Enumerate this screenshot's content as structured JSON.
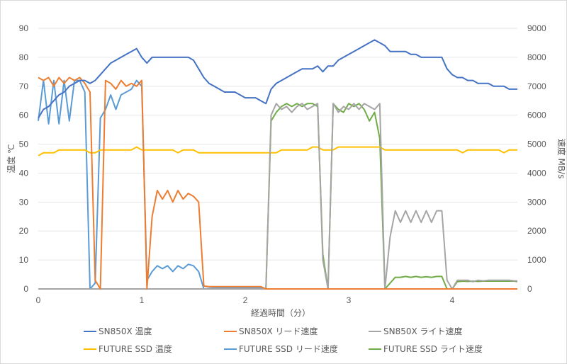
{
  "chart_data": {
    "type": "line",
    "title": "",
    "xlabel": "経過時間（分）",
    "ylabel_left": "温度 ℃",
    "ylabel_right": "速度 MB/s",
    "xlim": [
      0,
      4.65
    ],
    "ylim_left": [
      0,
      90
    ],
    "ylim_right": [
      0,
      9000
    ],
    "x_ticks": [
      "0",
      "1",
      "2",
      "3",
      "4"
    ],
    "y_ticks_left": [
      "0",
      "10",
      "20",
      "30",
      "40",
      "50",
      "60",
      "70",
      "80",
      "90"
    ],
    "y_ticks_right": [
      "0",
      "1000",
      "2000",
      "3000",
      "4000",
      "5000",
      "6000",
      "7000",
      "8000",
      "9000"
    ],
    "grid": true,
    "legend_position": "bottom",
    "x_step": 0.05,
    "series": [
      {
        "name": "SN850X 温度",
        "axis": "left",
        "color": "#4472C4",
        "values": [
          59,
          62,
          63,
          65,
          67,
          68,
          70,
          71,
          72,
          72,
          71,
          72,
          74,
          76,
          78,
          79,
          80,
          81,
          82,
          83,
          80,
          78,
          80,
          80,
          80,
          80,
          80,
          80,
          80,
          80,
          79,
          76,
          73,
          71,
          70,
          69,
          68,
          68,
          68,
          67,
          66,
          66,
          66,
          65,
          64,
          69,
          71,
          72,
          73,
          74,
          75,
          76,
          76,
          76,
          77,
          75,
          77,
          77,
          79,
          80,
          81,
          82,
          83,
          84,
          85,
          86,
          85,
          84,
          82,
          82,
          82,
          82,
          81,
          81,
          80,
          80,
          80,
          80,
          80,
          76,
          74,
          73,
          73,
          72,
          72,
          71,
          71,
          71,
          70,
          70,
          70,
          69,
          69,
          69
        ]
      },
      {
        "name": "SN850X リード速度",
        "axis": "right",
        "color": "#ED7D31",
        "values": [
          7300,
          7200,
          7300,
          7000,
          7300,
          7100,
          7300,
          7200,
          7300,
          7100,
          6800,
          300,
          0,
          7200,
          7100,
          6900,
          7200,
          7000,
          7100,
          7000,
          7200,
          0,
          2500,
          3400,
          3100,
          3400,
          3000,
          3400,
          3100,
          3300,
          3200,
          3000,
          100,
          80,
          80,
          80,
          80,
          80,
          80,
          80,
          80,
          80,
          80,
          80,
          0,
          0,
          0,
          0,
          0,
          0,
          0,
          0,
          0,
          0,
          0,
          0,
          0,
          0,
          0,
          0,
          0,
          0,
          0,
          0,
          0,
          0,
          0,
          0,
          0,
          0,
          0,
          0,
          0,
          0,
          0,
          0,
          0,
          0,
          0,
          0,
          0,
          0,
          0,
          0,
          0,
          0,
          0,
          0,
          0,
          0,
          0,
          0,
          0,
          0
        ]
      },
      {
        "name": "SN850X ライト速度",
        "axis": "right",
        "color": "#A5A5A5",
        "values": [
          0,
          0,
          0,
          0,
          0,
          0,
          0,
          0,
          0,
          0,
          0,
          0,
          0,
          0,
          0,
          0,
          0,
          0,
          0,
          0,
          0,
          0,
          0,
          0,
          0,
          0,
          0,
          0,
          0,
          0,
          0,
          0,
          0,
          0,
          0,
          0,
          0,
          0,
          0,
          0,
          0,
          0,
          0,
          0,
          0,
          6000,
          6400,
          6200,
          6300,
          6100,
          6300,
          6400,
          6200,
          6300,
          6400,
          1000,
          0,
          6400,
          6100,
          6300,
          6200,
          6400,
          6200,
          6400,
          6300,
          6200,
          6400,
          0,
          1800,
          2700,
          2300,
          2700,
          2300,
          2700,
          2300,
          2700,
          2300,
          2700,
          2700,
          300,
          0,
          300,
          300,
          300,
          250,
          300,
          280,
          300,
          300,
          300,
          300,
          300,
          280,
          280
        ]
      },
      {
        "name": "FUTURE SSD 温度",
        "axis": "left",
        "color": "#FFC000",
        "values": [
          46,
          47,
          47,
          47,
          48,
          48,
          48,
          48,
          48,
          48,
          47,
          47,
          48,
          48,
          48,
          48,
          48,
          48,
          48,
          49,
          48,
          48,
          48,
          48,
          48,
          48,
          48,
          47,
          48,
          48,
          48,
          47,
          47,
          47,
          47,
          47,
          47,
          47,
          47,
          47,
          47,
          47,
          47,
          47,
          47,
          47,
          47,
          48,
          48,
          48,
          48,
          48,
          48,
          49,
          49,
          48,
          48,
          48,
          49,
          49,
          49,
          49,
          49,
          49,
          49,
          49,
          49,
          48,
          48,
          48,
          48,
          48,
          48,
          48,
          48,
          48,
          48,
          48,
          48,
          48,
          48,
          48,
          47,
          48,
          48,
          48,
          48,
          48,
          48,
          48,
          47,
          48,
          48,
          48
        ]
      },
      {
        "name": "FUTURE SSD リード速度",
        "axis": "right",
        "color": "#5B9BD5",
        "values": [
          5800,
          7200,
          5700,
          7200,
          5700,
          7200,
          5800,
          7200,
          7200,
          6800,
          0,
          200,
          5900,
          6200,
          6700,
          6200,
          6700,
          6800,
          6900,
          7200,
          7000,
          300,
          600,
          800,
          700,
          800,
          600,
          800,
          700,
          850,
          800,
          600,
          0,
          20,
          30,
          30,
          30,
          30,
          30,
          30,
          30,
          30,
          30,
          30,
          0,
          0,
          0,
          0,
          0,
          0,
          0,
          0,
          0,
          0,
          0,
          0,
          0,
          0,
          0,
          0,
          0,
          0,
          0,
          0,
          0,
          0,
          0,
          0,
          0,
          0,
          0,
          0,
          0,
          0,
          0,
          0,
          0,
          0,
          0,
          0,
          0,
          0,
          0,
          0,
          0,
          0,
          0,
          0,
          0,
          0,
          0,
          0,
          0,
          0
        ]
      },
      {
        "name": "FUTURE SSD ライト速度",
        "axis": "right",
        "color": "#70AD47",
        "values": [
          0,
          0,
          0,
          0,
          0,
          0,
          0,
          0,
          0,
          0,
          0,
          0,
          0,
          0,
          0,
          0,
          0,
          0,
          0,
          0,
          0,
          0,
          0,
          0,
          0,
          0,
          0,
          0,
          0,
          0,
          0,
          0,
          0,
          0,
          0,
          0,
          0,
          0,
          0,
          0,
          0,
          0,
          0,
          0,
          0,
          5800,
          6100,
          6300,
          6400,
          6300,
          6400,
          6300,
          6400,
          6400,
          6300,
          1200,
          0,
          6400,
          6200,
          6100,
          6400,
          6300,
          6400,
          6200,
          5800,
          6100,
          5200,
          0,
          200,
          400,
          400,
          430,
          400,
          430,
          400,
          420,
          400,
          430,
          430,
          0,
          0,
          250,
          270,
          260,
          270,
          260,
          270,
          270,
          270,
          270,
          270,
          270,
          270,
          250
        ]
      }
    ]
  },
  "legend": {
    "items": [
      {
        "label": "SN850X 温度",
        "color": "#4472C4"
      },
      {
        "label": "SN850X リード速度",
        "color": "#ED7D31"
      },
      {
        "label": "SN850X ライト速度",
        "color": "#A5A5A5"
      },
      {
        "label": "FUTURE SSD 温度",
        "color": "#FFC000"
      },
      {
        "label": "FUTURE SSD リード速度",
        "color": "#5B9BD5"
      },
      {
        "label": "FUTURE SSD ライト速度",
        "color": "#70AD47"
      }
    ]
  }
}
